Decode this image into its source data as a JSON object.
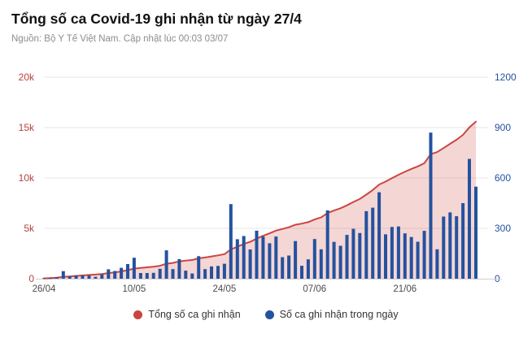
{
  "header": {
    "title": "Tổng số ca Covid-19 ghi nhận từ ngày 27/4",
    "subtitle": "Nguồn: Bộ Y Tế Việt Nam. Cập nhật lúc 00:03 03/07"
  },
  "legend": {
    "items": [
      {
        "label": "Tổng số ca ghi nhận",
        "color": "#cb4540"
      },
      {
        "label": "Số ca ghi nhận trong ngày",
        "color": "#24529e"
      }
    ]
  },
  "chart_data": {
    "type": "combo-bar-area-line",
    "title": "Tổng số ca Covid-19 ghi nhận từ ngày 27/4",
    "x": [
      "26/04",
      "27/04",
      "28/04",
      "29/04",
      "30/04",
      "01/05",
      "02/05",
      "03/05",
      "04/05",
      "05/05",
      "06/05",
      "07/05",
      "08/05",
      "09/05",
      "10/05",
      "11/05",
      "12/05",
      "13/05",
      "14/05",
      "15/05",
      "16/05",
      "17/05",
      "18/05",
      "19/05",
      "20/05",
      "21/05",
      "22/05",
      "23/05",
      "24/05",
      "25/05",
      "26/05",
      "27/05",
      "28/05",
      "29/05",
      "30/05",
      "31/05",
      "01/06",
      "02/06",
      "03/06",
      "04/06",
      "05/06",
      "06/06",
      "07/06",
      "08/06",
      "09/06",
      "10/06",
      "11/06",
      "12/06",
      "13/06",
      "14/06",
      "15/06",
      "16/06",
      "17/06",
      "18/06",
      "19/06",
      "20/06",
      "21/06",
      "22/06",
      "23/06",
      "24/06",
      "25/06",
      "26/06",
      "27/06",
      "28/06",
      "29/06",
      "30/06",
      "01/07",
      "02/07"
    ],
    "x_tick_labels": [
      "26/04",
      "10/05",
      "24/05",
      "07/06",
      "21/06"
    ],
    "series": [
      {
        "name": "Tổng số ca ghi nhận",
        "type": "area-line",
        "axis": "left",
        "color": "#cb4540",
        "fill": "rgba(203,69,64,0.22)",
        "values": [
          33,
          68,
          106,
          181,
          225,
          275,
          325,
          374,
          415,
          471,
          557,
          633,
          728,
          845,
          1000,
          1064,
          1128,
          1193,
          1282,
          1481,
          1568,
          1714,
          1792,
          1853,
          2017,
          2104,
          2207,
          2313,
          2432,
          2906,
          3171,
          3455,
          3659,
          3975,
          4256,
          4497,
          4778,
          4936,
          5104,
          5358,
          5465,
          5610,
          5876,
          6081,
          6518,
          6767,
          6993,
          7284,
          7611,
          7913,
          8345,
          8798,
          9343,
          9637,
          9975,
          10316,
          10616,
          10894,
          11144,
          11459,
          12359,
          12564,
          12964,
          13389,
          13791,
          14271,
          15014,
          15592
        ]
      },
      {
        "name": "Số ca ghi nhận trong ngày",
        "type": "bar",
        "axis": "right",
        "color": "#24529e",
        "values": [
          3,
          5,
          8,
          45,
          14,
          20,
          20,
          19,
          11,
          26,
          56,
          46,
          65,
          87,
          125,
          34,
          34,
          35,
          59,
          169,
          57,
          116,
          48,
          31,
          134,
          57,
          73,
          76,
          89,
          444,
          235,
          254,
          174,
          286,
          251,
          211,
          251,
          128,
          138,
          224,
          77,
          115,
          236,
          175,
          407,
          219,
          196,
          261,
          297,
          272,
          402,
          423,
          515,
          264,
          308,
          311,
          270,
          248,
          220,
          285,
          870,
          175,
          370,
          395,
          372,
          450,
          713,
          548
        ]
      }
    ],
    "left_axis": {
      "ticks": [
        "0",
        "5k",
        "10k",
        "15k",
        "20k"
      ],
      "range": [
        0,
        20000
      ],
      "color": "#b5423c"
    },
    "right_axis": {
      "ticks": [
        "0",
        "300",
        "600",
        "900",
        "1200"
      ],
      "range": [
        0,
        1200
      ],
      "color": "#24529e"
    },
    "grid": true,
    "grid_color": "#e4e4e4",
    "axis_line_color": "#cfcfcf",
    "x_label_color": "#4a4a4a",
    "legend_position": "bottom"
  }
}
